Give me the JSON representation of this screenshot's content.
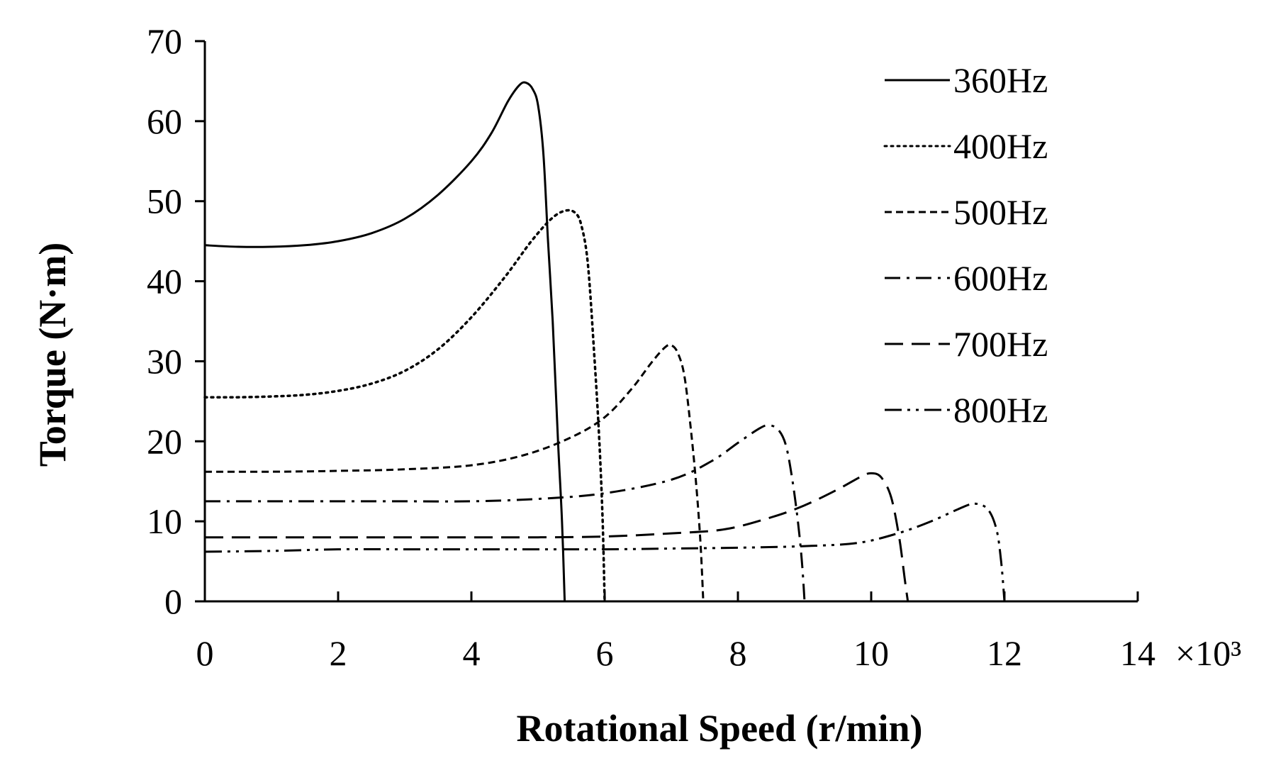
{
  "chart_data": {
    "type": "line",
    "title": "",
    "xlabel": "Rotational Speed (r/min)",
    "ylabel": "Torque (N·m)",
    "x_multiplier_label": "×10³",
    "xlim": [
      0,
      14
    ],
    "ylim": [
      0,
      70
    ],
    "x_ticks": [
      0,
      2,
      4,
      6,
      8,
      10,
      12,
      14
    ],
    "y_ticks": [
      0,
      10,
      20,
      30,
      40,
      50,
      60,
      70
    ],
    "grid": false,
    "legend_position": "top-right",
    "series": [
      {
        "name": "360Hz",
        "style": "solid",
        "points": [
          [
            0,
            44.5
          ],
          [
            0.5,
            44.3
          ],
          [
            1,
            44.3
          ],
          [
            1.5,
            44.5
          ],
          [
            2,
            45.0
          ],
          [
            2.5,
            46.0
          ],
          [
            3,
            47.8
          ],
          [
            3.5,
            50.8
          ],
          [
            4,
            55.0
          ],
          [
            4.3,
            58.5
          ],
          [
            4.55,
            62.5
          ],
          [
            4.72,
            64.5
          ],
          [
            4.82,
            64.8
          ],
          [
            4.92,
            64.0
          ],
          [
            5.0,
            62.0
          ],
          [
            5.08,
            56.0
          ],
          [
            5.15,
            45.0
          ],
          [
            5.22,
            35.0
          ],
          [
            5.3,
            20.0
          ],
          [
            5.36,
            10.0
          ],
          [
            5.4,
            0
          ]
        ]
      },
      {
        "name": "400Hz",
        "style": "dotted",
        "points": [
          [
            0,
            25.5
          ],
          [
            0.5,
            25.5
          ],
          [
            1,
            25.6
          ],
          [
            1.5,
            25.8
          ],
          [
            2,
            26.3
          ],
          [
            2.5,
            27.2
          ],
          [
            3,
            28.8
          ],
          [
            3.5,
            31.5
          ],
          [
            4,
            35.5
          ],
          [
            4.5,
            40.5
          ],
          [
            4.9,
            45.0
          ],
          [
            5.2,
            47.8
          ],
          [
            5.4,
            48.8
          ],
          [
            5.55,
            48.6
          ],
          [
            5.65,
            47.0
          ],
          [
            5.75,
            42.0
          ],
          [
            5.85,
            30.0
          ],
          [
            5.92,
            20.0
          ],
          [
            5.97,
            10.0
          ],
          [
            6.0,
            0
          ]
        ]
      },
      {
        "name": "500Hz",
        "style": "dashed",
        "points": [
          [
            0,
            16.2
          ],
          [
            1,
            16.2
          ],
          [
            2,
            16.3
          ],
          [
            3,
            16.5
          ],
          [
            4,
            17.0
          ],
          [
            4.8,
            18.3
          ],
          [
            5.5,
            20.5
          ],
          [
            6,
            23.0
          ],
          [
            6.4,
            26.5
          ],
          [
            6.7,
            29.8
          ],
          [
            6.9,
            31.7
          ],
          [
            7.0,
            32.0
          ],
          [
            7.1,
            31.0
          ],
          [
            7.2,
            28.0
          ],
          [
            7.3,
            21.0
          ],
          [
            7.38,
            14.0
          ],
          [
            7.44,
            7.0
          ],
          [
            7.48,
            0
          ]
        ]
      },
      {
        "name": "600Hz",
        "style": "dashdot",
        "points": [
          [
            0,
            12.5
          ],
          [
            1,
            12.5
          ],
          [
            2,
            12.5
          ],
          [
            3,
            12.5
          ],
          [
            4,
            12.5
          ],
          [
            5,
            12.8
          ],
          [
            6,
            13.5
          ],
          [
            7,
            15.2
          ],
          [
            7.6,
            17.5
          ],
          [
            8,
            19.8
          ],
          [
            8.3,
            21.5
          ],
          [
            8.45,
            22.0
          ],
          [
            8.6,
            21.5
          ],
          [
            8.72,
            19.5
          ],
          [
            8.82,
            15.0
          ],
          [
            8.9,
            10.0
          ],
          [
            8.96,
            5.0
          ],
          [
            9.0,
            0
          ]
        ]
      },
      {
        "name": "700Hz",
        "style": "longdash",
        "points": [
          [
            0,
            8.0
          ],
          [
            1,
            8.0
          ],
          [
            2,
            8.0
          ],
          [
            3,
            8.0
          ],
          [
            4,
            8.0
          ],
          [
            5,
            8.0
          ],
          [
            6,
            8.1
          ],
          [
            7,
            8.5
          ],
          [
            7.8,
            9.0
          ],
          [
            8.5,
            10.5
          ],
          [
            9,
            12.0
          ],
          [
            9.5,
            14.0
          ],
          [
            9.85,
            15.6
          ],
          [
            10.0,
            16.0
          ],
          [
            10.15,
            15.5
          ],
          [
            10.3,
            13.0
          ],
          [
            10.42,
            8.0
          ],
          [
            10.5,
            3.0
          ],
          [
            10.55,
            0
          ]
        ]
      },
      {
        "name": "800Hz",
        "style": "dashdotdot",
        "points": [
          [
            0,
            6.2
          ],
          [
            1,
            6.3
          ],
          [
            2,
            6.5
          ],
          [
            3,
            6.5
          ],
          [
            4,
            6.5
          ],
          [
            5,
            6.5
          ],
          [
            6,
            6.5
          ],
          [
            7,
            6.6
          ],
          [
            8,
            6.7
          ],
          [
            9,
            6.9
          ],
          [
            9.8,
            7.3
          ],
          [
            10.4,
            8.5
          ],
          [
            10.9,
            10.0
          ],
          [
            11.3,
            11.5
          ],
          [
            11.55,
            12.2
          ],
          [
            11.75,
            11.5
          ],
          [
            11.88,
            9.0
          ],
          [
            11.95,
            5.0
          ],
          [
            12.0,
            0
          ]
        ]
      }
    ]
  }
}
